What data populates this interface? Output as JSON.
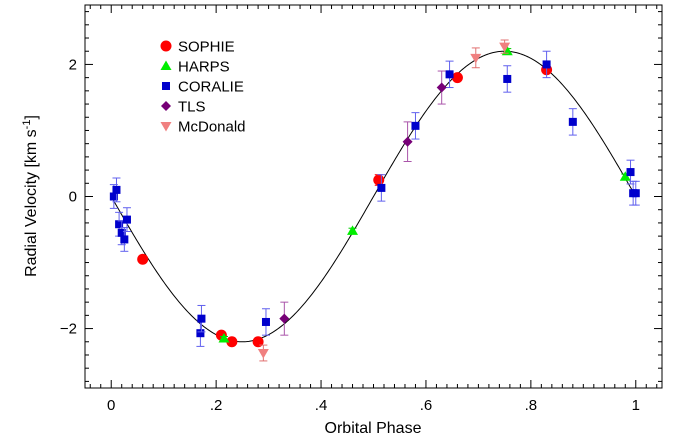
{
  "chart_data": {
    "type": "scatter",
    "xlabel": "Orbital Phase",
    "ylabel_main": "Radial Velocity [km s",
    "ylabel_sup": "-1",
    "ylabel_tail": "]",
    "xlim": [
      -0.05,
      1.05
    ],
    "ylim": [
      -2.9,
      2.9
    ],
    "x_ticks": [
      {
        "value": 0,
        "label": "0"
      },
      {
        "value": 0.2,
        "label": ".2"
      },
      {
        "value": 0.4,
        "label": ".4"
      },
      {
        "value": 0.6,
        "label": ".6"
      },
      {
        "value": 0.8,
        "label": ".8"
      },
      {
        "value": 1.0,
        "label": "1"
      }
    ],
    "y_ticks": [
      {
        "value": -2,
        "label": "−2"
      },
      {
        "value": 0,
        "label": "0"
      },
      {
        "value": 2,
        "label": "2"
      }
    ],
    "model_curve": {
      "type": "sinusoid",
      "offset": 0.0,
      "amplitude": 2.2,
      "phase_of_min": 0.25,
      "color": "#000000"
    },
    "legend_position": "top-left",
    "series": [
      {
        "name": "SOPHIE",
        "marker": "circle",
        "color": "#ff0000",
        "errcolor": "#ff0000",
        "points": [
          {
            "x": 0.06,
            "y": -0.95,
            "err": 0.05
          },
          {
            "x": 0.21,
            "y": -2.1,
            "err": 0.05
          },
          {
            "x": 0.23,
            "y": -2.2,
            "err": 0.05
          },
          {
            "x": 0.28,
            "y": -2.2,
            "err": 0.05
          },
          {
            "x": 0.51,
            "y": 0.25,
            "err": 0.08
          },
          {
            "x": 0.66,
            "y": 1.8,
            "err": 0.05
          },
          {
            "x": 0.83,
            "y": 1.92,
            "err": 0.05
          }
        ]
      },
      {
        "name": "HARPS",
        "marker": "triangle-up",
        "color": "#00ee00",
        "errcolor": "#00cc00",
        "points": [
          {
            "x": 0.215,
            "y": -2.15,
            "err": 0.03
          },
          {
            "x": 0.46,
            "y": -0.52,
            "err": 0.04
          },
          {
            "x": 0.755,
            "y": 2.2,
            "err": 0.04
          },
          {
            "x": 0.98,
            "y": 0.3,
            "err": 0.04
          }
        ]
      },
      {
        "name": "CORALIE",
        "marker": "square",
        "color": "#0000cc",
        "errcolor": "#6060ee",
        "points": [
          {
            "x": 0.005,
            "y": 0.0,
            "err": 0.18
          },
          {
            "x": 0.01,
            "y": 0.1,
            "err": 0.18
          },
          {
            "x": 0.015,
            "y": -0.42,
            "err": 0.18
          },
          {
            "x": 0.02,
            "y": -0.55,
            "err": 0.18
          },
          {
            "x": 0.025,
            "y": -0.65,
            "err": 0.18
          },
          {
            "x": 0.03,
            "y": -0.35,
            "err": 0.18
          },
          {
            "x": 0.17,
            "y": -2.07,
            "err": 0.2
          },
          {
            "x": 0.172,
            "y": -1.85,
            "err": 0.2
          },
          {
            "x": 0.295,
            "y": -1.9,
            "err": 0.2
          },
          {
            "x": 0.515,
            "y": 0.13,
            "err": 0.2
          },
          {
            "x": 0.58,
            "y": 1.07,
            "err": 0.2
          },
          {
            "x": 0.645,
            "y": 1.85,
            "err": 0.2
          },
          {
            "x": 0.755,
            "y": 1.78,
            "err": 0.2
          },
          {
            "x": 0.83,
            "y": 2.0,
            "err": 0.2
          },
          {
            "x": 0.88,
            "y": 1.13,
            "err": 0.2
          },
          {
            "x": 0.99,
            "y": 0.37,
            "err": 0.18
          },
          {
            "x": 0.995,
            "y": 0.05,
            "err": 0.18
          },
          {
            "x": 1.0,
            "y": 0.05,
            "err": 0.18
          }
        ]
      },
      {
        "name": "TLS",
        "marker": "diamond",
        "color": "#770077",
        "errcolor": "#aa55aa",
        "points": [
          {
            "x": 0.33,
            "y": -1.85,
            "err": 0.25
          },
          {
            "x": 0.565,
            "y": 0.83,
            "err": 0.3
          },
          {
            "x": 0.63,
            "y": 1.65,
            "err": 0.25
          }
        ]
      },
      {
        "name": "McDonald",
        "marker": "triangle-down",
        "color": "#f08080",
        "errcolor": "#e07070",
        "points": [
          {
            "x": 0.29,
            "y": -2.37,
            "err": 0.12
          },
          {
            "x": 0.695,
            "y": 2.1,
            "err": 0.15
          },
          {
            "x": 0.75,
            "y": 2.27,
            "err": 0.1
          }
        ]
      }
    ]
  }
}
